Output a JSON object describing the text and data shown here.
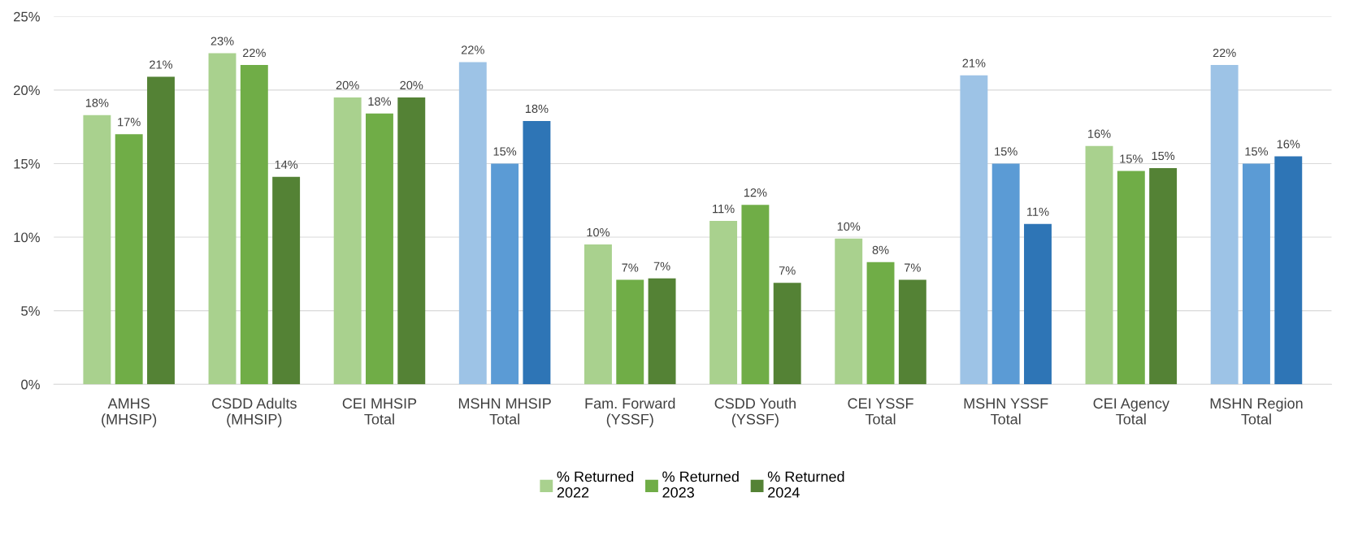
{
  "chart_data": {
    "type": "bar",
    "categories": [
      "AMHS\n(MHSIP)",
      "CSDD Adults\n(MHSIP)",
      "CEI MHSIP\nTotal",
      "MSHN MHSIP\nTotal",
      "Fam. Forward\n(YSSF)",
      "CSDD Youth\n(YSSF)",
      "CEI YSSF\nTotal",
      "MSHN YSSF\nTotal",
      "CEI Agency\nTotal",
      "MSHN Region\nTotal"
    ],
    "series": [
      {
        "name": "% Returned\n2022",
        "color": "#a9d18e",
        "colors": [
          "#a9d18e",
          "#a9d18e",
          "#a9d18e",
          "#9dc3e6",
          "#a9d18e",
          "#a9d18e",
          "#a9d18e",
          "#9dc3e6",
          "#a9d18e",
          "#9dc3e6"
        ],
        "values": [
          18.3,
          22.5,
          19.5,
          21.9,
          9.5,
          11.1,
          9.9,
          21.0,
          16.2,
          21.7
        ],
        "value_labels": [
          "18%",
          "23%",
          "20%",
          "22%",
          "10%",
          "11%",
          "10%",
          "21%",
          "16%",
          "22%"
        ]
      },
      {
        "name": "% Returned\n2023",
        "color": "#70ad47",
        "colors": [
          "#70ad47",
          "#70ad47",
          "#70ad47",
          "#5b9bd5",
          "#70ad47",
          "#70ad47",
          "#70ad47",
          "#5b9bd5",
          "#70ad47",
          "#5b9bd5"
        ],
        "values": [
          17.0,
          21.7,
          18.4,
          15.0,
          7.1,
          12.2,
          8.3,
          15.0,
          14.5,
          15.0
        ],
        "value_labels": [
          "17%",
          "22%",
          "18%",
          "15%",
          "7%",
          "12%",
          "8%",
          "15%",
          "15%",
          "15%"
        ]
      },
      {
        "name": "% Returned\n2024",
        "color": "#548235",
        "colors": [
          "#548235",
          "#548235",
          "#548235",
          "#2e75b6",
          "#548235",
          "#548235",
          "#548235",
          "#2e75b6",
          "#548235",
          "#2e75b6"
        ],
        "values": [
          20.9,
          14.1,
          19.5,
          17.9,
          7.2,
          6.9,
          7.1,
          10.9,
          14.7,
          15.5
        ],
        "value_labels": [
          "21%",
          "14%",
          "20%",
          "18%",
          "7%",
          "7%",
          "7%",
          "11%",
          "15%",
          "16%"
        ]
      }
    ],
    "ylim": [
      0,
      25
    ],
    "yticks": [
      {
        "value": 0,
        "label": "0%"
      },
      {
        "value": 5,
        "label": "5%"
      },
      {
        "value": 10,
        "label": "10%"
      },
      {
        "value": 15,
        "label": "15%"
      },
      {
        "value": 20,
        "label": "20%"
      },
      {
        "value": 25,
        "label": "25%"
      }
    ],
    "grid": "y",
    "legend": "bottom"
  }
}
